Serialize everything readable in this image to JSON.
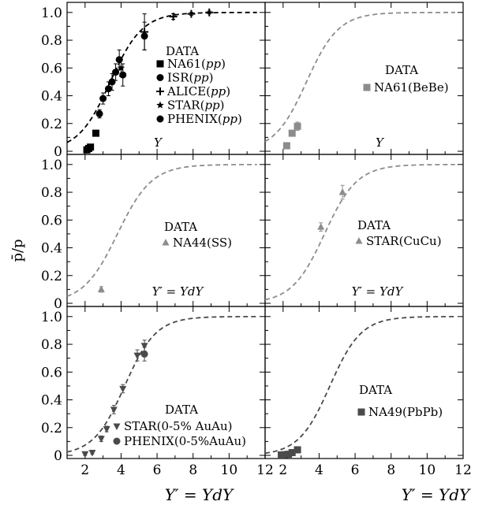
{
  "figure": {
    "ylabel": "p̄/p",
    "xlabel_left": "Y′ = YdY",
    "xlabel_right": "Y′ = YdY",
    "colors": {
      "black": "#000000",
      "gray": "#8c8c8c",
      "darkgray": "#4a4a4a",
      "axis": "#000000"
    }
  },
  "chart_data": [
    {
      "type": "scatter",
      "panel": "top-left",
      "xlim": [
        1,
        12
      ],
      "ylim": [
        0,
        1.05
      ],
      "xticks": [
        2,
        4,
        6,
        8,
        10,
        12
      ],
      "yticks": [
        0,
        0.2,
        0.4,
        0.6,
        0.8,
        1.0
      ],
      "xtick_labels": [],
      "ytick_labels": [
        "0",
        "0.2",
        "0.4",
        "0.6",
        "0.8",
        "1.0"
      ],
      "axis_text": "Y",
      "legend_title": "DATA",
      "legend": [
        "NA61(pp)",
        "ISR(pp)",
        "ALICE(pp)",
        "STAR(pp)",
        "PHENIX(pp)"
      ],
      "curve": {
        "color": "#000000",
        "x0": 3.4,
        "k": 1.12
      },
      "series": [
        {
          "name": "NA61(pp)",
          "marker": "square",
          "color": "#000000",
          "points": [
            [
              2.1,
              0.01
            ],
            [
              2.2,
              0.02
            ],
            [
              2.3,
              0.03
            ],
            [
              2.6,
              0.13
            ]
          ],
          "err": [
            0.01,
            0.01,
            0.01,
            0.02
          ]
        },
        {
          "name": "ISR(pp)",
          "marker": "circle",
          "color": "#000000",
          "points": [
            [
              2.8,
              0.27
            ],
            [
              3.0,
              0.38
            ],
            [
              3.3,
              0.45
            ],
            [
              3.7,
              0.57
            ],
            [
              3.9,
              0.66
            ],
            [
              4.1,
              0.55
            ],
            [
              5.3,
              0.83
            ]
          ],
          "err": [
            0.03,
            0.04,
            0.05,
            0.06,
            0.07,
            0.08,
            0.1
          ]
        },
        {
          "name": "ALICE(pp)",
          "marker": "plus",
          "color": "#000000",
          "points": [
            [
              5.3,
              0.86
            ],
            [
              6.9,
              0.97
            ],
            [
              7.9,
              0.99
            ],
            [
              8.9,
              1.0
            ]
          ],
          "err": [
            0.13,
            0.02,
            0.01,
            0.01
          ]
        },
        {
          "name": "STAR(pp)",
          "marker": "star",
          "color": "#000000",
          "points": [
            [
              4.0,
              0.6
            ]
          ],
          "err": [
            0.06
          ]
        },
        {
          "name": "PHENIX(pp)",
          "marker": "circle",
          "color": "#000000",
          "points": [
            [
              3.5,
              0.5
            ]
          ],
          "err": [
            0.06
          ]
        }
      ]
    },
    {
      "type": "scatter",
      "panel": "top-right",
      "xlim": [
        1,
        12
      ],
      "ylim": [
        0,
        1.05
      ],
      "xticks": [
        2,
        4,
        6,
        8,
        10,
        12
      ],
      "yticks": [
        0,
        0.2,
        0.4,
        0.6,
        0.8,
        1.0
      ],
      "xtick_labels": [],
      "ytick_labels": [],
      "axis_text": "Y",
      "legend_title": "DATA",
      "legend": [
        "NA61(BeBe)"
      ],
      "curve": {
        "color": "#8c8c8c",
        "x0": 3.3,
        "k": 1.12
      },
      "series": [
        {
          "name": "NA61(BeBe)",
          "marker": "square",
          "color": "#8c8c8c",
          "points": [
            [
              2.2,
              0.04
            ],
            [
              2.5,
              0.13
            ],
            [
              2.8,
              0.18
            ]
          ],
          "err": [
            0.01,
            0.02,
            0.03
          ]
        }
      ]
    },
    {
      "type": "scatter",
      "panel": "middle-left",
      "xlim": [
        1,
        12
      ],
      "ylim": [
        0,
        1.05
      ],
      "xticks": [
        2,
        4,
        6,
        8,
        10,
        12
      ],
      "yticks": [
        0,
        0.2,
        0.4,
        0.6,
        0.8,
        1.0
      ],
      "xtick_labels": [],
      "ytick_labels": [
        "0",
        "0.2",
        "0.4",
        "0.6",
        "0.8",
        "1.0"
      ],
      "axis_text": "Y′ = YdY",
      "legend_title": "DATA",
      "legend": [
        "NA44(SS)"
      ],
      "curve": {
        "color": "#8c8c8c",
        "x0": 3.8,
        "k": 1.05
      },
      "series": [
        {
          "name": "NA44(SS)",
          "marker": "triangle",
          "color": "#8c8c8c",
          "points": [
            [
              2.9,
              0.1
            ]
          ],
          "err": [
            0.02
          ]
        }
      ]
    },
    {
      "type": "scatter",
      "panel": "middle-right",
      "xlim": [
        1,
        12
      ],
      "ylim": [
        0,
        1.05
      ],
      "xticks": [
        2,
        4,
        6,
        8,
        10,
        12
      ],
      "yticks": [
        0,
        0.2,
        0.4,
        0.6,
        0.8,
        1.0
      ],
      "xtick_labels": [],
      "ytick_labels": [],
      "axis_text": "Y′ = YdY",
      "legend_title": "DATA",
      "legend": [
        "STAR(CuCu)"
      ],
      "curve": {
        "color": "#8c8c8c",
        "x0": 4.3,
        "k": 1.1
      },
      "series": [
        {
          "name": "STAR(CuCu)",
          "marker": "triangle",
          "color": "#8c8c8c",
          "points": [
            [
              4.1,
              0.55
            ],
            [
              5.3,
              0.8
            ]
          ],
          "err": [
            0.03,
            0.05
          ]
        }
      ]
    },
    {
      "type": "scatter",
      "panel": "bottom-left",
      "xlim": [
        1,
        12
      ],
      "ylim": [
        0,
        1.05
      ],
      "xticks": [
        2,
        4,
        6,
        8,
        10,
        12
      ],
      "yticks": [
        0,
        0.2,
        0.4,
        0.6,
        0.8,
        1.0
      ],
      "xtick_labels": [
        "2",
        "4",
        "6",
        "8",
        "10",
        "12"
      ],
      "ytick_labels": [
        "0",
        "0.2",
        "0.4",
        "0.6",
        "0.8",
        "1.0"
      ],
      "axis_text": "",
      "legend_title": "DATA",
      "legend": [
        "STAR(0-5% AuAu)",
        "PHENIX(0-5%AuAu)"
      ],
      "curve": {
        "color": "#4a4a4a",
        "x0": 4.2,
        "k": 1.15
      },
      "series": [
        {
          "name": "STAR(0-5% AuAu)",
          "marker": "triangle-down",
          "color": "#4a4a4a",
          "points": [
            [
              2.0,
              0.01
            ],
            [
              2.4,
              0.02
            ],
            [
              2.9,
              0.12
            ],
            [
              3.2,
              0.19
            ],
            [
              3.6,
              0.33
            ],
            [
              4.1,
              0.48
            ],
            [
              4.9,
              0.72
            ],
            [
              5.3,
              0.79
            ]
          ],
          "err": [
            0.01,
            0.01,
            0.02,
            0.02,
            0.03,
            0.03,
            0.04,
            0.04
          ]
        },
        {
          "name": "PHENIX(0-5%AuAu)",
          "marker": "circle",
          "color": "#4a4a4a",
          "points": [
            [
              5.3,
              0.73
            ]
          ],
          "err": [
            0.05
          ]
        }
      ]
    },
    {
      "type": "scatter",
      "panel": "bottom-right",
      "xlim": [
        1,
        12
      ],
      "ylim": [
        0,
        1.05
      ],
      "xticks": [
        2,
        4,
        6,
        8,
        10,
        12
      ],
      "yticks": [
        0,
        0.2,
        0.4,
        0.6,
        0.8,
        1.0
      ],
      "xtick_labels": [
        "2",
        "4",
        "6",
        "8",
        "10",
        "12"
      ],
      "ytick_labels": [],
      "axis_text": "",
      "legend_title": "DATA",
      "legend": [
        "NA49(PbPb)"
      ],
      "curve": {
        "color": "#4a4a4a",
        "x0": 4.6,
        "k": 1.15
      },
      "series": [
        {
          "name": "NA49(PbPb)",
          "marker": "square",
          "color": "#4a4a4a",
          "points": [
            [
              1.9,
              0.003
            ],
            [
              2.1,
              0.005
            ],
            [
              2.3,
              0.008
            ],
            [
              2.5,
              0.02
            ],
            [
              2.8,
              0.04
            ]
          ],
          "err": [
            0.003,
            0.003,
            0.003,
            0.005,
            0.01
          ]
        }
      ]
    }
  ]
}
